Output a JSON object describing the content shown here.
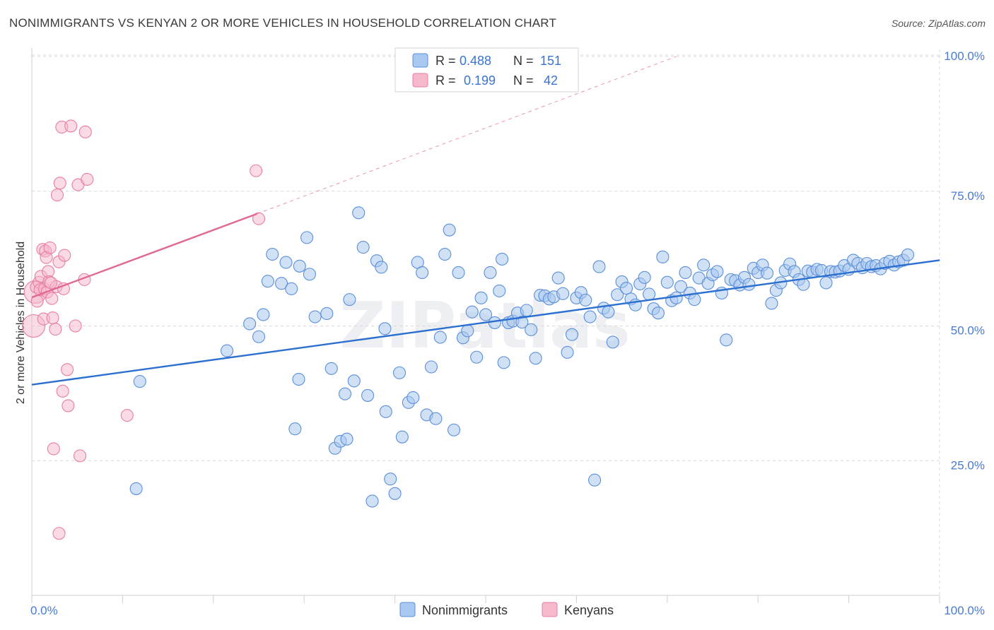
{
  "title": "NONIMMIGRANTS VS KENYAN 2 OR MORE VEHICLES IN HOUSEHOLD CORRELATION CHART",
  "source": "Source: ZipAtlas.com",
  "watermark": "ZIPatlas",
  "colors": {
    "blue_fill": "#a9c8ef",
    "blue_stroke": "#5b8fd8",
    "blue_line": "#2b6fd0",
    "pink_fill": "#f6b8cb",
    "pink_stroke": "#e87ea0",
    "pink_line": "#e06892",
    "tick_text": "#4a7bd0",
    "grid": "#d8d8d8"
  },
  "legend": {
    "rows": [
      {
        "r_label": "R =",
        "r_value": "0.488",
        "n_label": "N =",
        "n_value": "151"
      },
      {
        "r_label": "R =",
        "r_value": "0.199",
        "n_label": "N =",
        "n_value": "42"
      }
    ]
  },
  "bottom_legend": [
    "Nonimmigrants",
    "Kenyans"
  ],
  "chart_data": {
    "type": "scatter",
    "title": "NONIMMIGRANTS VS KENYAN 2 OR MORE VEHICLES IN HOUSEHOLD CORRELATION CHART",
    "xlabel": "",
    "ylabel": "2 or more Vehicles in Household",
    "xlim": [
      0,
      100
    ],
    "ylim": [
      0,
      100
    ],
    "x_tick_labels": [
      "0.0%",
      "100.0%"
    ],
    "y_ticks": [
      25,
      50,
      75,
      100
    ],
    "y_tick_labels": [
      "25.0%",
      "50.0%",
      "75.0%",
      "100.0%"
    ],
    "grid": true,
    "legend_position": "top-center",
    "series": [
      {
        "name": "Nonimmigrants",
        "r": 0.488,
        "n": 151,
        "trend": {
          "x": [
            0,
            100
          ],
          "y": [
            39.1,
            62.2
          ]
        },
        "points": [
          [
            11.5,
            19.8
          ],
          [
            11.9,
            39.7
          ],
          [
            21.5,
            45.4
          ],
          [
            24.0,
            50.4
          ],
          [
            25.0,
            48.0
          ],
          [
            25.5,
            52.1
          ],
          [
            26.0,
            58.3
          ],
          [
            26.5,
            63.3
          ],
          [
            27.5,
            57.9
          ],
          [
            28.0,
            61.8
          ],
          [
            28.6,
            56.9
          ],
          [
            29.0,
            30.9
          ],
          [
            29.5,
            61.1
          ],
          [
            30.3,
            66.4
          ],
          [
            30.6,
            59.6
          ],
          [
            31.2,
            51.7
          ],
          [
            32.5,
            52.3
          ],
          [
            33.0,
            42.1
          ],
          [
            33.4,
            27.3
          ],
          [
            34.0,
            28.6
          ],
          [
            34.5,
            37.4
          ],
          [
            35.0,
            54.9
          ],
          [
            35.5,
            39.8
          ],
          [
            36.0,
            71.0
          ],
          [
            36.5,
            64.6
          ],
          [
            37.0,
            37.1
          ],
          [
            37.5,
            17.5
          ],
          [
            38.0,
            62.1
          ],
          [
            38.5,
            60.9
          ],
          [
            39.0,
            34.1
          ],
          [
            39.5,
            21.6
          ],
          [
            40.0,
            18.9
          ],
          [
            40.5,
            41.3
          ],
          [
            40.8,
            29.4
          ],
          [
            41.5,
            35.8
          ],
          [
            42.0,
            36.7
          ],
          [
            42.5,
            61.8
          ],
          [
            43.0,
            59.9
          ],
          [
            43.5,
            33.5
          ],
          [
            44.0,
            42.4
          ],
          [
            44.5,
            32.8
          ],
          [
            45.0,
            47.9
          ],
          [
            45.5,
            63.3
          ],
          [
            46.0,
            67.8
          ],
          [
            46.5,
            30.7
          ],
          [
            47.0,
            59.9
          ],
          [
            47.5,
            47.8
          ],
          [
            48.0,
            49.1
          ],
          [
            48.5,
            52.6
          ],
          [
            49.0,
            44.2
          ],
          [
            49.5,
            55.2
          ],
          [
            50.0,
            52.1
          ],
          [
            50.5,
            59.9
          ],
          [
            51.0,
            50.6
          ],
          [
            51.5,
            56.5
          ],
          [
            52.0,
            43.2
          ],
          [
            52.5,
            50.6
          ],
          [
            53.0,
            50.9
          ],
          [
            53.5,
            52.4
          ],
          [
            54.0,
            50.7
          ],
          [
            54.5,
            52.9
          ],
          [
            55.0,
            49.3
          ],
          [
            55.5,
            44.0
          ],
          [
            56.0,
            55.7
          ],
          [
            56.5,
            55.6
          ],
          [
            57.0,
            55.0
          ],
          [
            57.5,
            55.4
          ],
          [
            58.0,
            58.9
          ],
          [
            58.5,
            56.0
          ],
          [
            59.0,
            45.1
          ],
          [
            59.5,
            48.4
          ],
          [
            60.0,
            55.2
          ],
          [
            60.5,
            56.2
          ],
          [
            61.0,
            54.8
          ],
          [
            61.5,
            51.7
          ],
          [
            62.0,
            21.4
          ],
          [
            62.5,
            61.0
          ],
          [
            63.0,
            53.3
          ],
          [
            63.5,
            52.6
          ],
          [
            64.0,
            47.0
          ],
          [
            64.5,
            55.8
          ],
          [
            65.0,
            58.2
          ],
          [
            65.5,
            57.0
          ],
          [
            66.0,
            55.0
          ],
          [
            66.5,
            53.9
          ],
          [
            67.0,
            57.8
          ],
          [
            67.5,
            59.0
          ],
          [
            68.0,
            55.9
          ],
          [
            68.5,
            53.2
          ],
          [
            69.0,
            52.4
          ],
          [
            69.5,
            62.8
          ],
          [
            70.0,
            58.1
          ],
          [
            70.5,
            54.7
          ],
          [
            71.0,
            55.2
          ],
          [
            71.5,
            57.3
          ],
          [
            72.0,
            59.9
          ],
          [
            72.5,
            56.1
          ],
          [
            73.0,
            54.9
          ],
          [
            73.5,
            58.9
          ],
          [
            74.0,
            61.3
          ],
          [
            74.5,
            57.9
          ],
          [
            75.0,
            59.5
          ],
          [
            75.5,
            60.1
          ],
          [
            76.0,
            56.1
          ],
          [
            76.5,
            47.4
          ],
          [
            77.0,
            58.6
          ],
          [
            77.5,
            58.4
          ],
          [
            78.0,
            57.6
          ],
          [
            78.5,
            59.0
          ],
          [
            79.0,
            57.7
          ],
          [
            79.5,
            60.7
          ],
          [
            80.0,
            59.9
          ],
          [
            80.5,
            61.3
          ],
          [
            81.0,
            59.8
          ],
          [
            81.5,
            54.2
          ],
          [
            82.0,
            56.6
          ],
          [
            82.5,
            58.0
          ],
          [
            83.0,
            60.3
          ],
          [
            83.5,
            61.5
          ],
          [
            84.0,
            60.1
          ],
          [
            84.5,
            58.6
          ],
          [
            85.0,
            57.7
          ],
          [
            85.5,
            60.2
          ],
          [
            86.0,
            60.0
          ],
          [
            86.5,
            60.5
          ],
          [
            87.0,
            60.3
          ],
          [
            87.5,
            58.0
          ],
          [
            88.0,
            60.1
          ],
          [
            88.5,
            60.0
          ],
          [
            89.0,
            60.2
          ],
          [
            89.5,
            61.2
          ],
          [
            90.0,
            60.5
          ],
          [
            90.5,
            62.2
          ],
          [
            91.0,
            61.6
          ],
          [
            91.5,
            60.8
          ],
          [
            92.0,
            61.6
          ],
          [
            92.5,
            61.0
          ],
          [
            93.0,
            61.2
          ],
          [
            93.5,
            60.6
          ],
          [
            94.0,
            61.6
          ],
          [
            94.5,
            62.0
          ],
          [
            95.0,
            61.3
          ],
          [
            95.5,
            61.9
          ],
          [
            96.0,
            62.2
          ],
          [
            96.5,
            63.2
          ],
          [
            29.4,
            40.1
          ],
          [
            34.7,
            29.0
          ],
          [
            51.8,
            62.4
          ],
          [
            38.9,
            49.5
          ]
        ]
      },
      {
        "name": "Kenyans",
        "r": 0.199,
        "n": 42,
        "trend": {
          "x": [
            0,
            24.8
          ],
          "y": [
            55.3,
            70.8
          ]
        },
        "trend_ext": {
          "x": [
            24.8,
            71.0
          ],
          "y": [
            70.8,
            100.0
          ]
        },
        "points": [
          [
            0.2,
            50.0
          ],
          [
            0.4,
            56.3
          ],
          [
            0.5,
            57.2
          ],
          [
            0.6,
            54.6
          ],
          [
            0.8,
            58.1
          ],
          [
            0.9,
            56.7
          ],
          [
            1.0,
            59.2
          ],
          [
            1.2,
            64.2
          ],
          [
            1.3,
            51.3
          ],
          [
            1.4,
            56.9
          ],
          [
            1.5,
            63.9
          ],
          [
            1.6,
            62.7
          ],
          [
            1.7,
            56.3
          ],
          [
            1.8,
            60.1
          ],
          [
            1.9,
            58.2
          ],
          [
            2.0,
            64.5
          ],
          [
            2.2,
            55.1
          ],
          [
            2.3,
            51.5
          ],
          [
            2.4,
            27.2
          ],
          [
            2.6,
            49.4
          ],
          [
            2.7,
            57.3
          ],
          [
            2.8,
            74.3
          ],
          [
            3.0,
            61.9
          ],
          [
            3.1,
            76.5
          ],
          [
            3.3,
            86.9
          ],
          [
            3.4,
            37.9
          ],
          [
            3.5,
            56.9
          ],
          [
            3.6,
            63.1
          ],
          [
            3.9,
            41.9
          ],
          [
            4.0,
            35.2
          ],
          [
            4.3,
            87.1
          ],
          [
            4.8,
            50.0
          ],
          [
            5.1,
            76.2
          ],
          [
            5.3,
            25.9
          ],
          [
            5.8,
            58.6
          ],
          [
            5.9,
            86.0
          ],
          [
            6.1,
            77.2
          ],
          [
            10.5,
            33.4
          ],
          [
            3.0,
            11.5
          ],
          [
            24.7,
            78.8
          ],
          [
            25.0,
            69.9
          ],
          [
            2.1,
            58.0
          ]
        ]
      }
    ]
  }
}
